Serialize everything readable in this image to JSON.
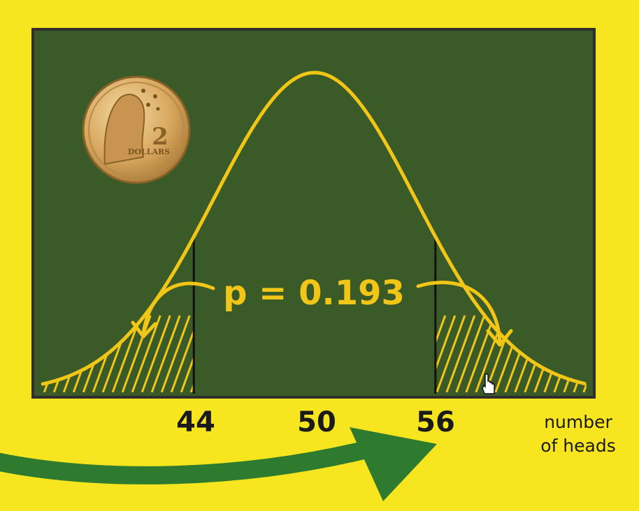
{
  "board": {
    "background": "#3a5a28",
    "border": "#2e2e2e"
  },
  "curve": {
    "color": "#f2c617",
    "mean": 50,
    "lower_cut": 44,
    "upper_cut": 56
  },
  "annotation": {
    "p_label": "p = 0.193"
  },
  "axis": {
    "ticks": [
      "44",
      "50",
      "56"
    ],
    "label_line1": "number",
    "label_line2": "of heads"
  },
  "coin": {
    "denomination": "2",
    "word": "DOLLARS",
    "icon": "two-dollar-coin-icon"
  },
  "overlay": {
    "arrow_color": "#2e7a2e",
    "cursor_icon": "hand-pointer-icon"
  }
}
